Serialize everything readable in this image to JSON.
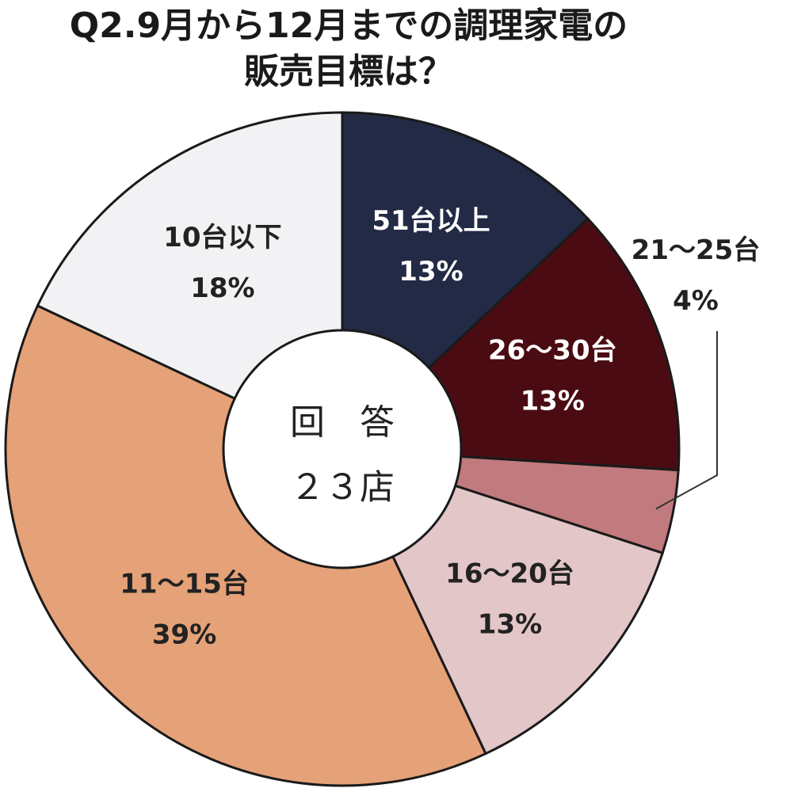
{
  "chart_data": {
    "type": "pie",
    "title": "Q2.9月から12月までの調理家電の販売目標は？",
    "title_lines": [
      "Q2.9月から12月までの調理家電の",
      "販売目標は？"
    ],
    "center_label": {
      "line1": "回　答",
      "line2": "２３店"
    },
    "slices": [
      {
        "label": "51台以上",
        "value": 13,
        "value_label": "13%",
        "color": "#222a45",
        "text_color": "#ffffff"
      },
      {
        "label": "26〜30台",
        "value": 13,
        "value_label": "13%",
        "color": "#4a0c12",
        "text_color": "#ffffff"
      },
      {
        "label": "21〜25台",
        "value": 4,
        "value_label": "4%",
        "color": "#c17a7e",
        "text_color": "#222222",
        "label_outside": true
      },
      {
        "label": "16〜20台",
        "value": 13,
        "value_label": "13%",
        "color": "#e3c6c8",
        "text_color": "#222222"
      },
      {
        "label": "11〜15台",
        "value": 39,
        "value_label": "39%",
        "color": "#e5a178",
        "text_color": "#222222"
      },
      {
        "label": "10台以下",
        "value": 18,
        "value_label": "18%",
        "color": "#f2f2f4",
        "text_color": "#222222"
      }
    ],
    "start_angle_deg": 0,
    "direction": "clockwise",
    "donut": true,
    "legend": "none"
  }
}
